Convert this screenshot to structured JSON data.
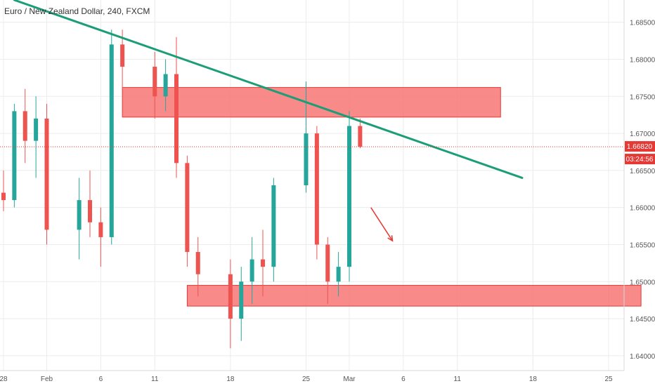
{
  "header": {
    "title": "Euro / New Zealand Dollar, 240, FXCM"
  },
  "price_badge": {
    "price": "1.66820",
    "countdown": "03:24:56"
  },
  "colors": {
    "bull": "#26a69a",
    "bear": "#ef5350",
    "trendline": "#1b9e77",
    "zone_fill": "#f77575",
    "zone_stroke": "#e53935",
    "arrow": "#e53935",
    "last_price_line": "#e53935",
    "grid": "#ececec"
  },
  "chart_data": {
    "type": "candlestick",
    "symbol": "EURNZD",
    "timeframe": "240",
    "source": "FXCM",
    "ylim": [
      1.638,
      1.688
    ],
    "y_ticks": [
      "1.68500",
      "1.68000",
      "1.67500",
      "1.67000",
      "1.66500",
      "1.66000",
      "1.65500",
      "1.65000",
      "1.64500",
      "1.64000"
    ],
    "x_ticks": [
      "28",
      "Feb",
      "6",
      "11",
      "18",
      "25",
      "Mar",
      "6",
      "11",
      "18",
      "25"
    ],
    "x_tick_dates": [
      "2019-01-28",
      "2019-02-01",
      "2019-02-06",
      "2019-02-11",
      "2019-02-18",
      "2019-02-25",
      "2019-03-01",
      "2019-03-06",
      "2019-03-11",
      "2019-03-18",
      "2019-03-25"
    ],
    "last_price": 1.6682,
    "candles": [
      {
        "date": "2019-01-28",
        "o": 1.662,
        "h": 1.665,
        "l": 1.6595,
        "c": 1.661
      },
      {
        "date": "2019-01-29",
        "o": 1.661,
        "h": 1.674,
        "l": 1.66,
        "c": 1.673
      },
      {
        "date": "2019-01-30",
        "o": 1.673,
        "h": 1.676,
        "l": 1.666,
        "c": 1.669
      },
      {
        "date": "2019-01-31",
        "o": 1.669,
        "h": 1.675,
        "l": 1.664,
        "c": 1.672
      },
      {
        "date": "2019-02-01",
        "o": 1.672,
        "h": 1.674,
        "l": 1.655,
        "c": 1.657
      },
      {
        "date": "2019-02-04",
        "o": 1.657,
        "h": 1.664,
        "l": 1.653,
        "c": 1.661
      },
      {
        "date": "2019-02-05",
        "o": 1.661,
        "h": 1.665,
        "l": 1.656,
        "c": 1.658
      },
      {
        "date": "2019-02-06",
        "o": 1.658,
        "h": 1.66,
        "l": 1.652,
        "c": 1.656
      },
      {
        "date": "2019-02-07",
        "o": 1.656,
        "h": 1.684,
        "l": 1.655,
        "c": 1.682
      },
      {
        "date": "2019-02-08",
        "o": 1.682,
        "h": 1.684,
        "l": 1.676,
        "c": 1.679
      },
      {
        "date": "2019-02-11",
        "o": 1.679,
        "h": 1.681,
        "l": 1.672,
        "c": 1.675
      },
      {
        "date": "2019-02-12",
        "o": 1.675,
        "h": 1.68,
        "l": 1.673,
        "c": 1.678
      },
      {
        "date": "2019-02-13",
        "o": 1.678,
        "h": 1.683,
        "l": 1.664,
        "c": 1.666
      },
      {
        "date": "2019-02-14",
        "o": 1.666,
        "h": 1.667,
        "l": 1.652,
        "c": 1.654
      },
      {
        "date": "2019-02-15",
        "o": 1.654,
        "h": 1.656,
        "l": 1.648,
        "c": 1.651
      },
      {
        "date": "2019-02-18",
        "o": 1.651,
        "h": 1.653,
        "l": 1.641,
        "c": 1.645
      },
      {
        "date": "2019-02-19",
        "o": 1.645,
        "h": 1.652,
        "l": 1.642,
        "c": 1.65
      },
      {
        "date": "2019-02-20",
        "o": 1.65,
        "h": 1.656,
        "l": 1.647,
        "c": 1.653
      },
      {
        "date": "2019-02-21",
        "o": 1.653,
        "h": 1.657,
        "l": 1.648,
        "c": 1.652
      },
      {
        "date": "2019-02-22",
        "o": 1.652,
        "h": 1.664,
        "l": 1.65,
        "c": 1.663
      },
      {
        "date": "2019-02-25",
        "o": 1.663,
        "h": 1.677,
        "l": 1.662,
        "c": 1.67
      },
      {
        "date": "2019-02-26",
        "o": 1.67,
        "h": 1.671,
        "l": 1.653,
        "c": 1.655
      },
      {
        "date": "2019-02-27",
        "o": 1.655,
        "h": 1.656,
        "l": 1.647,
        "c": 1.65
      },
      {
        "date": "2019-02-28",
        "o": 1.65,
        "h": 1.654,
        "l": 1.648,
        "c": 1.652
      },
      {
        "date": "2019-03-01",
        "o": 1.652,
        "h": 1.673,
        "l": 1.65,
        "c": 1.671
      },
      {
        "date": "2019-03-02",
        "o": 1.671,
        "h": 1.672,
        "l": 1.668,
        "c": 1.6682
      }
    ],
    "annotations": {
      "trendline": [
        {
          "date": "2019-01-29",
          "price": 1.688
        },
        {
          "date": "2019-03-17",
          "price": 1.664
        }
      ],
      "resistance_zone": {
        "from": "2019-02-08",
        "to": "2019-03-15",
        "top": 1.6762,
        "bottom": 1.6722
      },
      "support_zone": {
        "from": "2019-02-14",
        "to": "2019-03-28",
        "top": 1.6495,
        "bottom": 1.6467
      },
      "arrow": [
        {
          "date": "2019-03-03",
          "price": 1.66
        },
        {
          "date": "2019-03-05",
          "price": 1.6555
        }
      ]
    }
  }
}
